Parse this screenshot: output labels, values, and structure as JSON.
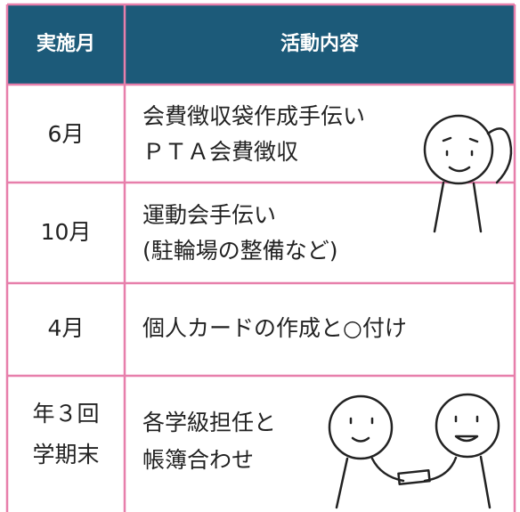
{
  "table": {
    "header": [
      "実施月",
      "活動内容"
    ],
    "rows": [
      {
        "month": [
          "6月"
        ],
        "activity": [
          "会費徴収袋作成手伝い",
          "ＰＴＡ会費徴収"
        ]
      },
      {
        "month": [
          "10月"
        ],
        "activity": [
          "運動会手伝い",
          "(駐輪場の整備など)"
        ]
      },
      {
        "month": [
          "4月"
        ],
        "activity": [
          "個人カードの作成と○付け"
        ]
      },
      {
        "month": [
          "年３回",
          "学期末"
        ],
        "activity": [
          "各学級担任と",
          "帳簿合わせ"
        ]
      }
    ]
  }
}
